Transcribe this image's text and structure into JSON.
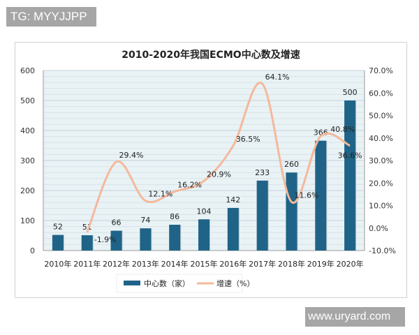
{
  "watermarks": {
    "top": "TG: MYYJJPP",
    "bottom": "www.uryard.com"
  },
  "chart_data": {
    "type": "bar+line",
    "title": "2010-2020年我国ECMO中心数及增速",
    "categories": [
      "2010年",
      "2011年",
      "2012年",
      "2013年",
      "2014年",
      "2015年",
      "2016年",
      "2017年",
      "2018年",
      "2019年",
      "2020年"
    ],
    "series": [
      {
        "name": "中心数（家）",
        "type": "bar",
        "axis": "left",
        "color": "#1f6488",
        "values": [
          52,
          51,
          66,
          74,
          86,
          104,
          142,
          233,
          260,
          366,
          500
        ]
      },
      {
        "name": "增速（%）",
        "type": "line",
        "axis": "right",
        "color": "#f4b99a",
        "values": [
          null,
          -1.9,
          29.4,
          12.1,
          16.2,
          20.9,
          36.5,
          64.1,
          11.6,
          40.8,
          36.6
        ],
        "labels": [
          "",
          "-1.9%",
          "29.4%",
          "12.1%",
          "16.2%",
          "20.9%",
          "36.5%",
          "64.1%",
          "11.6%",
          "40.8%",
          "36.6%"
        ]
      }
    ],
    "y_left": {
      "ylim": [
        0,
        600
      ],
      "ticks": [
        "0",
        "100",
        "200",
        "300",
        "400",
        "500",
        "600"
      ]
    },
    "y_right": {
      "ylim": [
        -10,
        70
      ],
      "ticks": [
        "-10.0%",
        "0.0%",
        "10.0%",
        "20.0%",
        "30.0%",
        "40.0%",
        "50.0%",
        "60.0%",
        "70.0%"
      ]
    },
    "grid": true,
    "legend": "bottom"
  }
}
